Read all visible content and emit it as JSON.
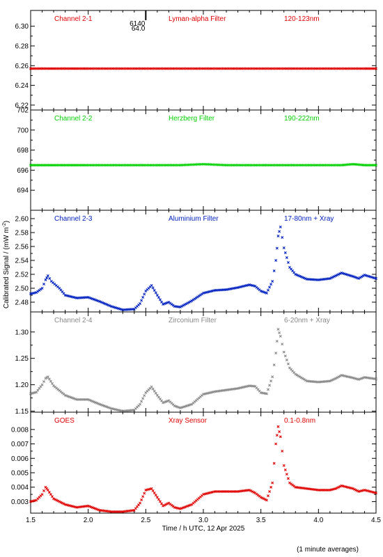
{
  "chart_data": {
    "type": "scatter",
    "xlabel": "Time / h UTC, 12 Apr 2025",
    "ylabel": "Calibrated Signal / (mW m",
    "ylabel_sup": "-2",
    "ylabel_close": ")",
    "note": "(1 minute averages)",
    "xlim": [
      1.5,
      4.5
    ],
    "xticks": [
      1.5,
      2.0,
      2.5,
      3.0,
      3.5,
      4.0,
      4.5
    ],
    "xtick_labels": [
      "1.5",
      "2.0",
      "2.5",
      "3.0",
      "3.5",
      "4.0",
      "4.5"
    ],
    "panels": [
      {
        "channel": "Channel 2-1",
        "filter": "Lyman-alpha Filter",
        "band": "120-123nm",
        "color": "#e00000",
        "ylim": [
          6.215,
          6.316
        ],
        "yticks": [
          "6.22",
          "6.24",
          "6.26",
          "6.28",
          "6.30"
        ],
        "ytick_values": [
          6.22,
          6.24,
          6.26,
          6.28,
          6.3
        ],
        "annotations": [
          "6140",
          "64.0"
        ],
        "annotation_x": 2.5,
        "points": [
          [
            1.5,
            6.257
          ],
          [
            1.6,
            6.257
          ],
          [
            1.7,
            6.257
          ],
          [
            1.8,
            6.257
          ],
          [
            1.9,
            6.257
          ],
          [
            2.0,
            6.257
          ],
          [
            2.2,
            6.257
          ],
          [
            2.4,
            6.257
          ],
          [
            2.6,
            6.257
          ],
          [
            2.8,
            6.257
          ],
          [
            3.0,
            6.257
          ],
          [
            3.2,
            6.257
          ],
          [
            3.4,
            6.257
          ],
          [
            3.6,
            6.257
          ],
          [
            3.8,
            6.257
          ],
          [
            4.0,
            6.257
          ],
          [
            4.2,
            6.257
          ],
          [
            4.4,
            6.257
          ],
          [
            4.5,
            6.257
          ]
        ]
      },
      {
        "channel": "Channel 2-2",
        "filter": "Herzberg Filter",
        "band": "190-222nm",
        "color": "#00d000",
        "ylim": [
          692.0,
          702.0
        ],
        "yticks": [
          "694",
          "696",
          "698",
          "700",
          "702"
        ],
        "ytick_values": [
          694,
          696,
          698,
          700,
          702
        ],
        "points": [
          [
            1.5,
            696.5
          ],
          [
            1.6,
            696.5
          ],
          [
            1.7,
            696.5
          ],
          [
            1.8,
            696.5
          ],
          [
            1.9,
            696.5
          ],
          [
            2.0,
            696.5
          ],
          [
            2.2,
            696.5
          ],
          [
            2.4,
            696.5
          ],
          [
            2.6,
            696.5
          ],
          [
            2.8,
            696.5
          ],
          [
            3.0,
            696.6
          ],
          [
            3.2,
            696.5
          ],
          [
            3.4,
            696.5
          ],
          [
            3.6,
            696.5
          ],
          [
            3.8,
            696.5
          ],
          [
            4.0,
            696.5
          ],
          [
            4.2,
            696.5
          ],
          [
            4.3,
            696.6
          ],
          [
            4.4,
            696.5
          ],
          [
            4.5,
            696.5
          ]
        ]
      },
      {
        "channel": "Channel 2-3",
        "filter": "Aluminium Filter",
        "band": "17-80nm + Xray",
        "color": "#0020c0",
        "ylim": [
          2.466,
          2.612
        ],
        "yticks": [
          "2.48",
          "2.50",
          "2.52",
          "2.54",
          "2.56",
          "2.58",
          "2.60"
        ],
        "ytick_values": [
          2.48,
          2.5,
          2.52,
          2.54,
          2.56,
          2.58,
          2.6
        ],
        "points": [
          [
            1.5,
            2.492
          ],
          [
            1.55,
            2.494
          ],
          [
            1.6,
            2.5
          ],
          [
            1.63,
            2.512
          ],
          [
            1.65,
            2.518
          ],
          [
            1.68,
            2.51
          ],
          [
            1.75,
            2.5
          ],
          [
            1.8,
            2.49
          ],
          [
            1.9,
            2.486
          ],
          [
            2.0,
            2.487
          ],
          [
            2.1,
            2.481
          ],
          [
            2.2,
            2.474
          ],
          [
            2.3,
            2.469
          ],
          [
            2.4,
            2.47
          ],
          [
            2.45,
            2.478
          ],
          [
            2.5,
            2.496
          ],
          [
            2.55,
            2.504
          ],
          [
            2.6,
            2.49
          ],
          [
            2.65,
            2.477
          ],
          [
            2.7,
            2.48
          ],
          [
            2.75,
            2.474
          ],
          [
            2.8,
            2.473
          ],
          [
            2.9,
            2.482
          ],
          [
            3.0,
            2.493
          ],
          [
            3.1,
            2.497
          ],
          [
            3.2,
            2.498
          ],
          [
            3.3,
            2.501
          ],
          [
            3.4,
            2.505
          ],
          [
            3.45,
            2.503
          ],
          [
            3.5,
            2.496
          ],
          [
            3.55,
            2.493
          ],
          [
            3.6,
            2.51
          ],
          [
            3.63,
            2.54
          ],
          [
            3.65,
            2.575
          ],
          [
            3.67,
            2.588
          ],
          [
            3.7,
            2.558
          ],
          [
            3.75,
            2.53
          ],
          [
            3.8,
            2.52
          ],
          [
            3.9,
            2.513
          ],
          [
            4.0,
            2.512
          ],
          [
            4.1,
            2.514
          ],
          [
            4.15,
            2.518
          ],
          [
            4.2,
            2.522
          ],
          [
            4.3,
            2.517
          ],
          [
            4.35,
            2.514
          ],
          [
            4.4,
            2.519
          ],
          [
            4.5,
            2.514
          ]
        ]
      },
      {
        "channel": "Channel 2-4",
        "filter": "Zirconium Filter",
        "band": "6-20nm + Xray",
        "color": "#888888",
        "ylim": [
          1.148,
          1.338
        ],
        "yticks": [
          "1.15",
          "1.20",
          "1.25",
          "1.30"
        ],
        "ytick_values": [
          1.15,
          1.2,
          1.25,
          1.3
        ],
        "points": [
          [
            1.5,
            1.183
          ],
          [
            1.55,
            1.186
          ],
          [
            1.6,
            1.2
          ],
          [
            1.63,
            1.212
          ],
          [
            1.65,
            1.215
          ],
          [
            1.7,
            1.198
          ],
          [
            1.8,
            1.18
          ],
          [
            1.9,
            1.172
          ],
          [
            2.0,
            1.172
          ],
          [
            2.1,
            1.163
          ],
          [
            2.2,
            1.155
          ],
          [
            2.3,
            1.15
          ],
          [
            2.4,
            1.152
          ],
          [
            2.45,
            1.163
          ],
          [
            2.5,
            1.185
          ],
          [
            2.55,
            1.196
          ],
          [
            2.6,
            1.18
          ],
          [
            2.65,
            1.166
          ],
          [
            2.7,
            1.17
          ],
          [
            2.75,
            1.16
          ],
          [
            2.8,
            1.156
          ],
          [
            2.9,
            1.163
          ],
          [
            3.0,
            1.182
          ],
          [
            3.1,
            1.187
          ],
          [
            3.2,
            1.19
          ],
          [
            3.3,
            1.193
          ],
          [
            3.4,
            1.198
          ],
          [
            3.45,
            1.197
          ],
          [
            3.5,
            1.185
          ],
          [
            3.55,
            1.183
          ],
          [
            3.6,
            1.215
          ],
          [
            3.63,
            1.26
          ],
          [
            3.65,
            1.305
          ],
          [
            3.67,
            1.292
          ],
          [
            3.7,
            1.262
          ],
          [
            3.75,
            1.232
          ],
          [
            3.8,
            1.22
          ],
          [
            3.9,
            1.207
          ],
          [
            4.0,
            1.205
          ],
          [
            4.1,
            1.207
          ],
          [
            4.15,
            1.212
          ],
          [
            4.2,
            1.218
          ],
          [
            4.3,
            1.213
          ],
          [
            4.35,
            1.21
          ],
          [
            4.4,
            1.214
          ],
          [
            4.5,
            1.211
          ]
        ]
      },
      {
        "channel": "GOES",
        "filter": "Xray Sensor",
        "band": "0.1-0.8nm",
        "color": "#e00000",
        "ylim": [
          0.0022,
          0.0092
        ],
        "yticks": [
          "0.003",
          "0.004",
          "0.005",
          "0.006",
          "0.007",
          "0.008"
        ],
        "ytick_values": [
          0.003,
          0.004,
          0.005,
          0.006,
          0.007,
          0.008
        ],
        "points": [
          [
            1.5,
            0.003
          ],
          [
            1.55,
            0.0031
          ],
          [
            1.6,
            0.0035
          ],
          [
            1.63,
            0.004
          ],
          [
            1.65,
            0.0038
          ],
          [
            1.7,
            0.0032
          ],
          [
            1.8,
            0.0028
          ],
          [
            1.9,
            0.0026
          ],
          [
            2.0,
            0.0027
          ],
          [
            2.1,
            0.0024
          ],
          [
            2.2,
            0.0023
          ],
          [
            2.3,
            0.0023
          ],
          [
            2.4,
            0.0024
          ],
          [
            2.45,
            0.0029
          ],
          [
            2.5,
            0.0038
          ],
          [
            2.55,
            0.0039
          ],
          [
            2.6,
            0.0033
          ],
          [
            2.65,
            0.0027
          ],
          [
            2.7,
            0.0029
          ],
          [
            2.75,
            0.0026
          ],
          [
            2.8,
            0.0025
          ],
          [
            2.9,
            0.0028
          ],
          [
            3.0,
            0.0035
          ],
          [
            3.1,
            0.0037
          ],
          [
            3.2,
            0.0037
          ],
          [
            3.3,
            0.0037
          ],
          [
            3.4,
            0.0038
          ],
          [
            3.45,
            0.0036
          ],
          [
            3.5,
            0.0033
          ],
          [
            3.55,
            0.0031
          ],
          [
            3.6,
            0.0043
          ],
          [
            3.63,
            0.007
          ],
          [
            3.65,
            0.0082
          ],
          [
            3.67,
            0.0075
          ],
          [
            3.7,
            0.0055
          ],
          [
            3.75,
            0.0043
          ],
          [
            3.8,
            0.004
          ],
          [
            3.9,
            0.0039
          ],
          [
            4.0,
            0.0038
          ],
          [
            4.1,
            0.0038
          ],
          [
            4.15,
            0.0039
          ],
          [
            4.2,
            0.0041
          ],
          [
            4.3,
            0.0039
          ],
          [
            4.35,
            0.0037
          ],
          [
            4.4,
            0.0038
          ],
          [
            4.5,
            0.0036
          ]
        ]
      }
    ]
  }
}
